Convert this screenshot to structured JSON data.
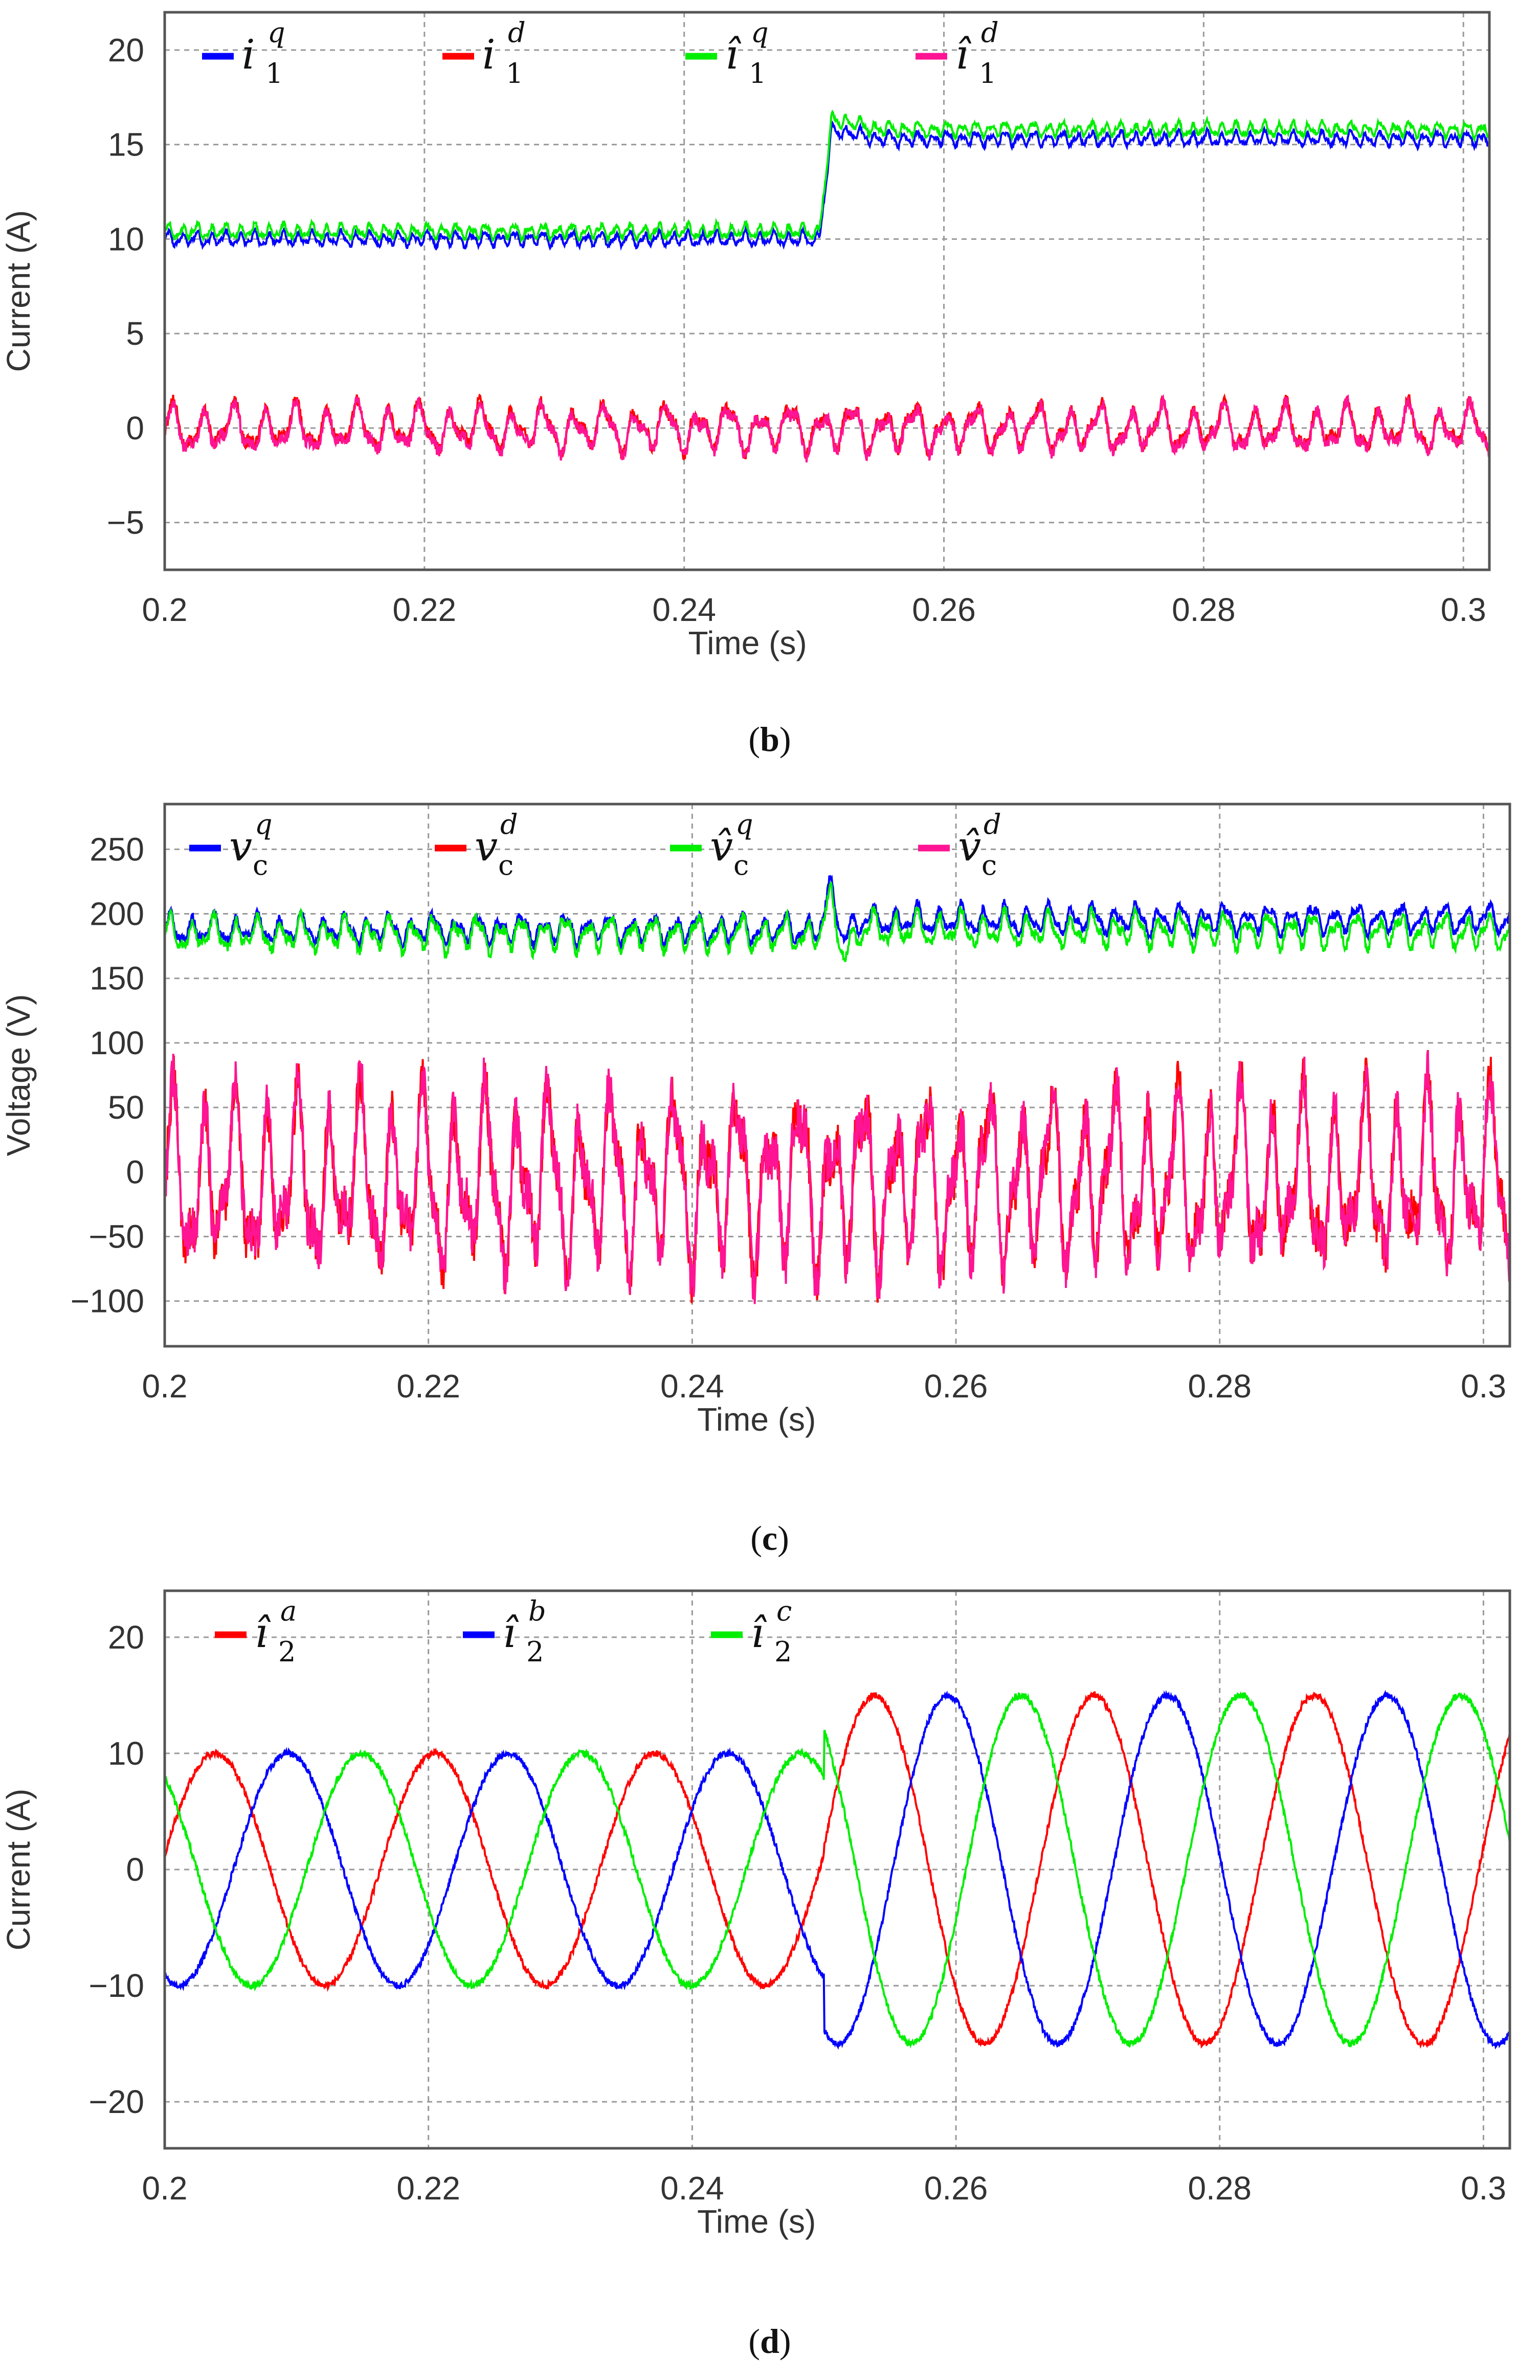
{
  "chart_data": [
    {
      "type": "line",
      "panel_label": "b",
      "xlabel": "Time (s)",
      "ylabel": "Current (A)",
      "xlim": [
        0.2,
        0.302
      ],
      "ylim": [
        -7.5,
        22
      ],
      "x_ticks": [
        0.2,
        0.22,
        0.24,
        0.26,
        0.28,
        0.3
      ],
      "x_tick_labels": [
        "0.2",
        "0.22",
        "0.24",
        "0.26",
        "0.28",
        "0.3"
      ],
      "y_ticks": [
        -5,
        0,
        5,
        10,
        15,
        20
      ],
      "y_tick_labels": [
        "−5",
        "0",
        "5",
        "10",
        "15",
        "20"
      ],
      "grid": true,
      "legend_position": "top",
      "series": [
        {
          "name": "i₁q",
          "label_main": "i",
          "label_sub": "1",
          "label_sup": "q",
          "hat": false,
          "color": "#0000ff",
          "values": [
            [
              0.2,
              10.0
            ],
            [
              0.2504,
              10.0
            ],
            [
              0.2514,
              15.8
            ],
            [
              0.255,
              15.3
            ],
            [
              0.302,
              15.3
            ]
          ],
          "ripple": 0.35,
          "ripple_freq": 900
        },
        {
          "name": "i₁d",
          "label_main": "i",
          "label_sub": "1",
          "label_sup": "d",
          "hat": false,
          "color": "#ff0000",
          "values": [
            [
              0.2,
              0.0
            ],
            [
              0.302,
              0.0
            ]
          ],
          "ripple": 1.1,
          "ripple_freq": 420
        },
        {
          "name": "î₁q",
          "label_main": "î",
          "label_sub": "1",
          "label_sup": "q",
          "hat": true,
          "color": "#00ee00",
          "values": [
            [
              0.2,
              10.4
            ],
            [
              0.2504,
              10.4
            ],
            [
              0.2514,
              16.4
            ],
            [
              0.255,
              15.8
            ],
            [
              0.302,
              15.8
            ]
          ],
          "ripple": 0.35,
          "ripple_freq": 900
        },
        {
          "name": "î₁d",
          "label_main": "î",
          "label_sub": "1",
          "label_sup": "d",
          "hat": true,
          "color": "#ff1493",
          "values": [
            [
              0.2,
              -0.1
            ],
            [
              0.302,
              -0.1
            ]
          ],
          "ripple": 1.1,
          "ripple_freq": 420
        }
      ]
    },
    {
      "type": "line",
      "panel_label": "c",
      "xlabel": "Time (s)",
      "ylabel": "Voltage (V)",
      "xlim": [
        0.2,
        0.302
      ],
      "ylim": [
        -135,
        285
      ],
      "x_ticks": [
        0.2,
        0.22,
        0.24,
        0.26,
        0.28,
        0.3
      ],
      "x_tick_labels": [
        "0.2",
        "0.22",
        "0.24",
        "0.26",
        "0.28",
        "0.3"
      ],
      "y_ticks": [
        -100,
        -50,
        0,
        50,
        100,
        150,
        200,
        250
      ],
      "y_tick_labels": [
        "−100",
        "−50",
        "0",
        "50",
        "100",
        "150",
        "200",
        "250"
      ],
      "grid": true,
      "legend_position": "top",
      "series": [
        {
          "name": "vcq",
          "label_main": "v",
          "label_sub": "c",
          "label_sup": "q",
          "hat": false,
          "color": "#0000ff",
          "values": [
            [
              0.2,
              188
            ],
            [
              0.2496,
              188
            ],
            [
              0.2505,
              218
            ],
            [
              0.2515,
              185
            ],
            [
              0.253,
              195
            ],
            [
              0.302,
              196
            ]
          ],
          "ripple": 10,
          "ripple_freq": 600
        },
        {
          "name": "vcd",
          "label_main": "v",
          "label_sub": "c",
          "label_sup": "d",
          "hat": false,
          "color": "#ff0000",
          "values": [
            [
              0.2,
              -8
            ],
            [
              0.302,
              -8
            ]
          ],
          "ripple": 62,
          "ripple_freq": 420
        },
        {
          "name": "v̂cq",
          "label_main": "v̂",
          "label_sub": "c",
          "label_sup": "q",
          "hat": true,
          "color": "#00ee00",
          "values": [
            [
              0.2,
              184
            ],
            [
              0.2496,
              184
            ],
            [
              0.2505,
              210
            ],
            [
              0.2515,
              172
            ],
            [
              0.253,
              188
            ],
            [
              0.302,
              186
            ]
          ],
          "ripple": 12,
          "ripple_freq": 600
        },
        {
          "name": "v̂cd",
          "label_main": "v̂",
          "label_sub": "c",
          "label_sup": "d",
          "hat": true,
          "color": "#ff1493",
          "values": [
            [
              0.2,
              -8
            ],
            [
              0.302,
              -8
            ]
          ],
          "ripple": 62,
          "ripple_freq": 420
        }
      ]
    },
    {
      "type": "line",
      "panel_label": "d",
      "xlabel": "Time (s)",
      "ylabel": "Current (A)",
      "xlim": [
        0.2,
        0.302
      ],
      "ylim": [
        -24,
        24
      ],
      "x_ticks": [
        0.2,
        0.22,
        0.24,
        0.26,
        0.28,
        0.3
      ],
      "x_tick_labels": [
        "0.2",
        "0.22",
        "0.24",
        "0.26",
        "0.28",
        "0.3"
      ],
      "y_ticks": [
        -20,
        -10,
        0,
        10,
        20
      ],
      "y_tick_labels": [
        "−20",
        "−10",
        "0",
        "10",
        "20"
      ],
      "grid": true,
      "legend_position": "top",
      "frequency_hz": 60,
      "amplitude_before": 10,
      "amplitude_after": 15,
      "step_time": 0.25,
      "series": [
        {
          "name": "î₂a",
          "label_main": "î",
          "label_sub": "2",
          "label_sup": "a",
          "hat": true,
          "color": "#ff0000",
          "phase_deg": 0
        },
        {
          "name": "î₂b",
          "label_main": "î",
          "label_sub": "2",
          "label_sup": "b",
          "hat": true,
          "color": "#0000ff",
          "phase_deg": -120
        },
        {
          "name": "î₂c",
          "label_main": "î",
          "label_sub": "2",
          "label_sup": "c",
          "hat": true,
          "color": "#00ee00",
          "phase_deg": 120
        }
      ]
    }
  ]
}
